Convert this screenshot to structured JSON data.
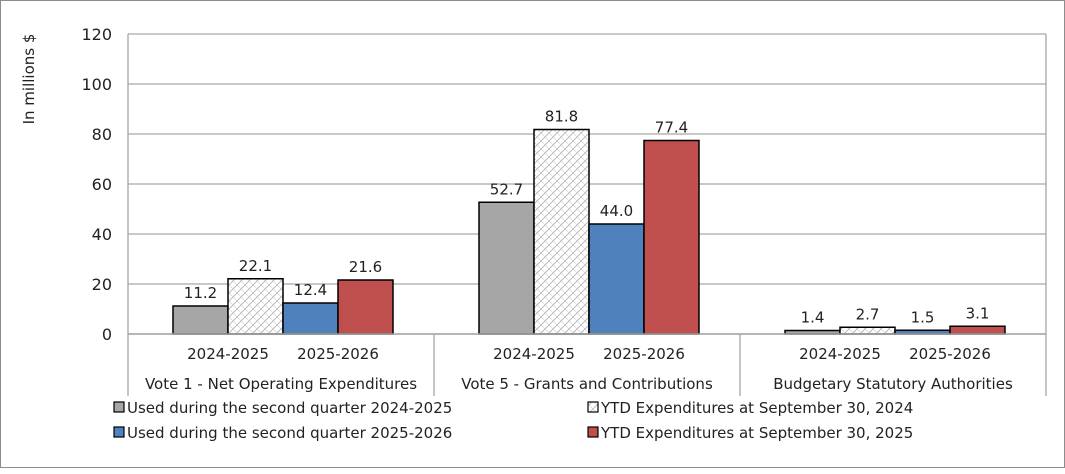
{
  "chart_data": {
    "type": "bar",
    "ylabel": "In millions $",
    "ylim": [
      0,
      120
    ],
    "yticks": [
      0,
      20,
      40,
      60,
      80,
      100,
      120
    ],
    "grid": true,
    "legend_position": "bottom",
    "groups": [
      {
        "label": "Vote 1 - Net Operating Expenditures",
        "years": [
          "2024-2025",
          "2025-2026"
        ]
      },
      {
        "label": "Vote  5 - Grants and Contributions",
        "years": [
          "2024-2025",
          "2025-2026"
        ]
      },
      {
        "label": "Budgetary Statutory Authorities",
        "years": [
          "2024-2025",
          "2025-2026"
        ]
      }
    ],
    "series": [
      {
        "name": "Used during the second quarter 2024-2025",
        "color": "#a6a6a6",
        "pattern": "solid",
        "values": [
          11.2,
          52.7,
          1.4
        ],
        "labels": [
          "11.2",
          "52.7",
          "1.4"
        ]
      },
      {
        "name": "YTD Expenditures at September 30, 2024",
        "color": "#ffffff",
        "pattern": "hatched",
        "values": [
          22.1,
          81.8,
          2.7
        ],
        "labels": [
          "22.1",
          "81.8",
          "2.7"
        ]
      },
      {
        "name": "Used during the second quarter 2025-2026",
        "color": "#4f81bd",
        "pattern": "solid",
        "values": [
          12.4,
          44.0,
          1.5
        ],
        "labels": [
          "12.4",
          "44.0",
          "1.5"
        ]
      },
      {
        "name": "YTD Expenditures at September 30, 2025",
        "color": "#c0504d",
        "pattern": "solid",
        "values": [
          21.6,
          77.4,
          3.1
        ],
        "labels": [
          "21.6",
          "77.4",
          "3.1"
        ]
      }
    ]
  }
}
